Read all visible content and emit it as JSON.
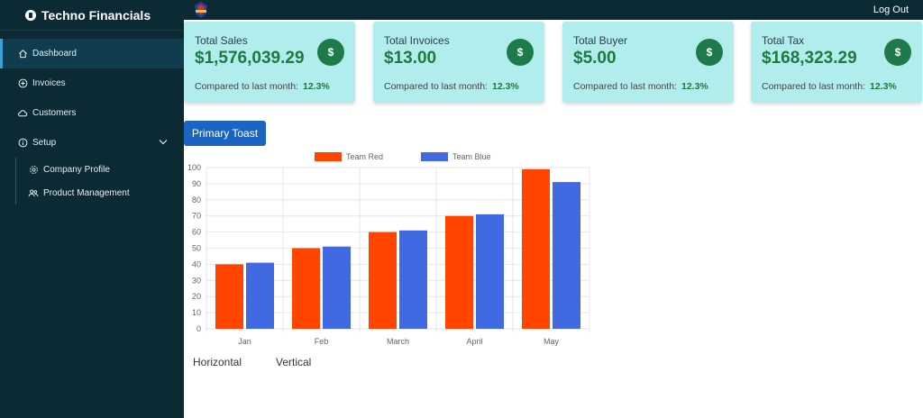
{
  "app": {
    "title": "Techno Financials"
  },
  "sidebar": {
    "items": [
      {
        "label": "Dashboard",
        "icon": "home-icon",
        "active": true
      },
      {
        "label": "Invoices",
        "icon": "plus-circle-icon"
      },
      {
        "label": "Customers",
        "icon": "cloud-icon"
      },
      {
        "label": "Setup",
        "icon": "info-circle-icon",
        "expandable": true
      }
    ],
    "subitems": [
      {
        "label": "Company Profile",
        "icon": "gear-icon"
      },
      {
        "label": "Product Management",
        "icon": "users-icon"
      }
    ]
  },
  "topbar": {
    "logout_label": "Log Out"
  },
  "cards": [
    {
      "title": "Total Sales",
      "value": "$1,576,039.29",
      "icon_label": "$",
      "compare_label": "Compared to last month:",
      "compare_value": "12.3%"
    },
    {
      "title": "Total Invoices",
      "value": "$13.00",
      "icon_label": "$",
      "compare_label": "Compared to last month:",
      "compare_value": "12.3%"
    },
    {
      "title": "Total Buyer",
      "value": "$5.00",
      "icon_label": "$",
      "compare_label": "Compared to last month:",
      "compare_value": "12.3%"
    },
    {
      "title": "Total Tax",
      "value": "$168,323.29",
      "icon_label": "$",
      "compare_label": "Compared to last month:",
      "compare_value": "12.3%"
    }
  ],
  "toast_button": {
    "label": "Primary Toast"
  },
  "chart_data": {
    "type": "bar",
    "categories": [
      "Jan",
      "Feb",
      "March",
      "April",
      "May"
    ],
    "series": [
      {
        "name": "Team Red",
        "color": "#ff4500",
        "values": [
          40,
          50,
          60,
          70,
          99
        ]
      },
      {
        "name": "Team Blue",
        "color": "#4169e1",
        "values": [
          41,
          51,
          61,
          71,
          91
        ]
      }
    ],
    "yticks": [
      0,
      10,
      20,
      30,
      40,
      50,
      60,
      70,
      80,
      90,
      100
    ],
    "ylim": [
      0,
      100
    ],
    "grid": true,
    "legend_position": "top"
  },
  "orientation": {
    "horizontal_label": "Horizontal",
    "vertical_label": "Vertical"
  },
  "colors": {
    "sidebar_bg": "#0b2a33",
    "card_bg": "#b2eded",
    "accent_green": "#1e7a3e",
    "primary_blue": "#1c64c2"
  }
}
